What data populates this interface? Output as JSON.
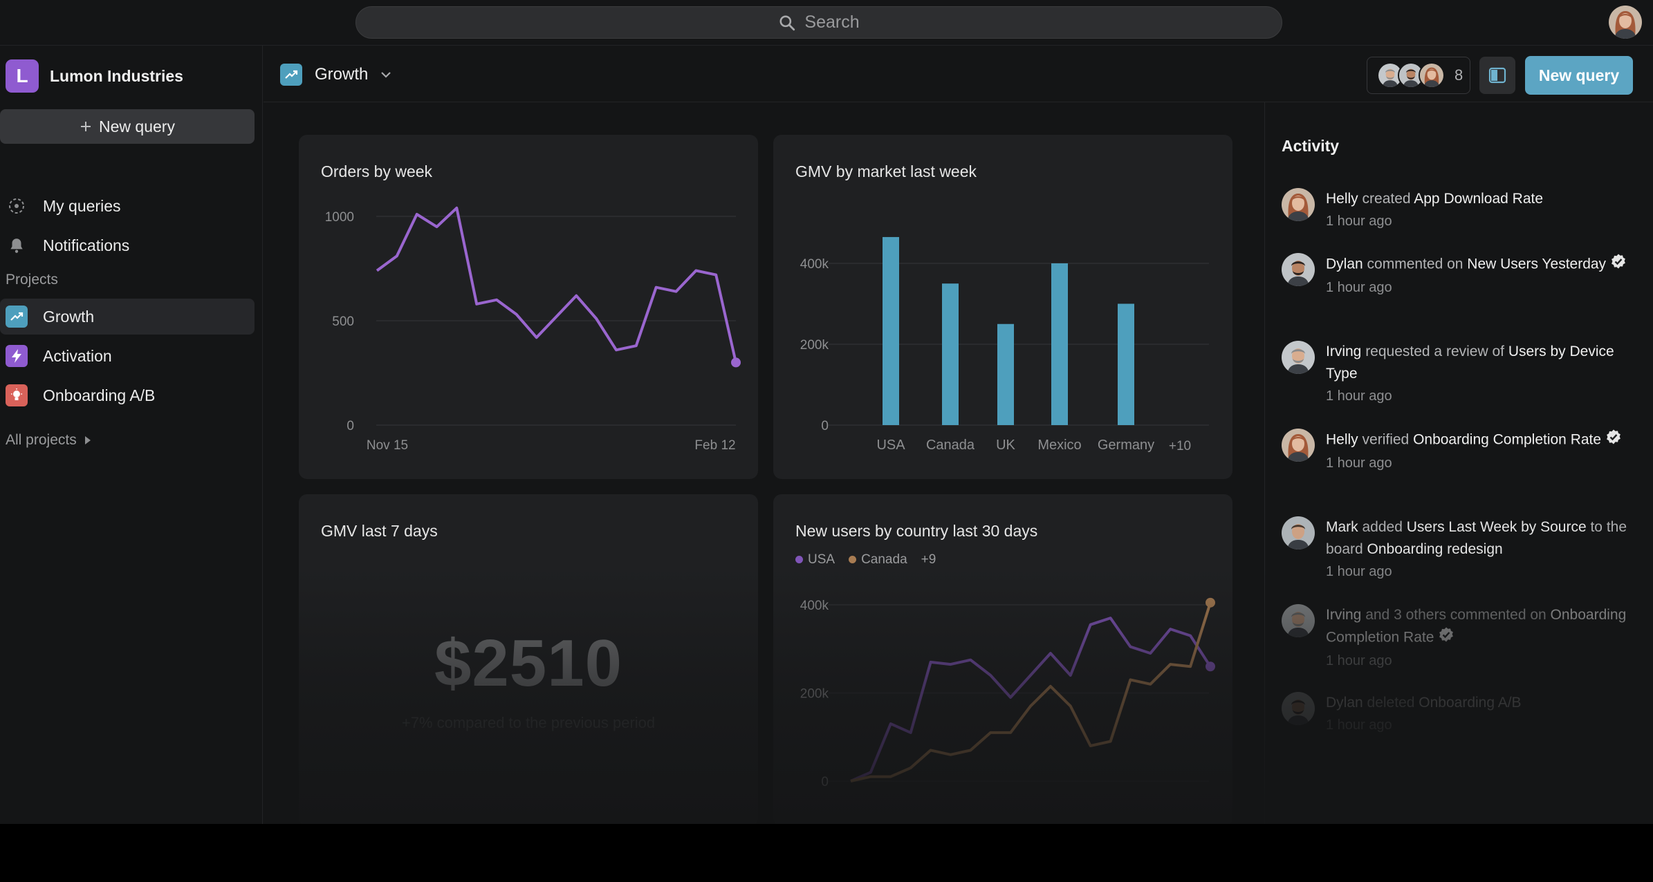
{
  "search": {
    "placeholder": "Search"
  },
  "workspace": {
    "initial": "L",
    "name": "Lumon Industries"
  },
  "sidebar": {
    "new_query": "New query",
    "nav": [
      {
        "label": "My queries",
        "icon": "queries-icon"
      },
      {
        "label": "Notifications",
        "icon": "bell-icon"
      }
    ],
    "projects_heading": "Projects",
    "projects": [
      {
        "label": "Growth",
        "icon": "trend-up-icon",
        "color": "#4e9fbd",
        "active": true
      },
      {
        "label": "Activation",
        "icon": "lightning-icon",
        "color": "#8f5bd0"
      },
      {
        "label": "Onboarding A/B",
        "icon": "lightbulb-icon",
        "color": "#d9625a"
      }
    ],
    "all_projects": "All projects"
  },
  "header": {
    "project": "Growth",
    "collaborator_count": "8",
    "new_query": "New query"
  },
  "cards": {
    "orders": {
      "title": "Orders by week"
    },
    "gmv_market": {
      "title": "GMV by market last week"
    },
    "gmv7": {
      "title": "GMV last 7 days",
      "value": "$2510",
      "subtitle": "+7% compared to the previous period"
    },
    "new_users": {
      "title": "New users by country last 30 days",
      "legend": [
        "USA",
        "Canada"
      ],
      "legend_more": "+9"
    }
  },
  "chart_data": [
    {
      "type": "line",
      "title": "Orders by week",
      "x_ticks": [
        "Nov 15",
        "Feb 12"
      ],
      "y_ticks": [
        "0",
        "500",
        "1000"
      ],
      "ylim": [
        0,
        1000
      ],
      "series": [
        {
          "color": "#9a66cf",
          "values": [
            740,
            810,
            1010,
            950,
            1040,
            580,
            600,
            530,
            420,
            520,
            620,
            510,
            360,
            380,
            660,
            640,
            740,
            720,
            300
          ]
        }
      ]
    },
    {
      "type": "bar",
      "title": "GMV by market last week",
      "categories": [
        "USA",
        "Canada",
        "UK",
        "Mexico",
        "Germany"
      ],
      "extra_label": "+10",
      "y_ticks": [
        "0",
        "200k",
        "400k"
      ],
      "ylim": [
        0,
        400000
      ],
      "color": "#4e9fbd",
      "values": [
        465000,
        350000,
        250000,
        400000,
        300000
      ]
    },
    {
      "type": "line",
      "title": "New users by country last 30 days",
      "y_ticks": [
        "0",
        "200k",
        "400k"
      ],
      "ylim": [
        0,
        400000
      ],
      "series": [
        {
          "name": "USA",
          "color": "#8055b8",
          "values": [
            0,
            20000,
            130000,
            110000,
            270000,
            265000,
            275000,
            240000,
            190000,
            240000,
            290000,
            240000,
            355000,
            370000,
            305000,
            290000,
            345000,
            330000,
            260000
          ]
        },
        {
          "name": "Canada",
          "color": "#a87c52",
          "values": [
            0,
            10000,
            10000,
            30000,
            70000,
            60000,
            70000,
            110000,
            110000,
            170000,
            215000,
            170000,
            80000,
            90000,
            230000,
            220000,
            265000,
            260000,
            405000
          ]
        }
      ]
    }
  ],
  "activity": {
    "title": "Activity",
    "items": [
      {
        "user": "Helly",
        "parts": [
          [
            "b",
            "Helly"
          ],
          [
            "t",
            " created "
          ],
          [
            "b",
            "App Download Rate"
          ]
        ],
        "verified": false,
        "time": "1 hour ago",
        "avatar": "helly"
      },
      {
        "user": "Dylan",
        "parts": [
          [
            "b",
            "Dylan"
          ],
          [
            "t",
            " commented on "
          ],
          [
            "b",
            "New Users Yesterday"
          ]
        ],
        "verified": true,
        "time": "1 hour ago",
        "avatar": "dylan"
      },
      {
        "user": "Irving",
        "parts": [
          [
            "b",
            "Irving"
          ],
          [
            "t",
            " requested a review of "
          ],
          [
            "b",
            "Users by Device Type"
          ]
        ],
        "verified": false,
        "time": "1 hour ago",
        "avatar": "irving"
      },
      {
        "user": "Helly",
        "parts": [
          [
            "b",
            "Helly"
          ],
          [
            "t",
            " verified "
          ],
          [
            "b",
            "Onboarding Completion Rate"
          ]
        ],
        "verified": true,
        "time": "1 hour ago",
        "avatar": "helly"
      },
      {
        "user": "Mark",
        "parts": [
          [
            "b",
            "Mark"
          ],
          [
            "t",
            " added "
          ],
          [
            "b",
            "Users Last Week by Source"
          ],
          [
            "t",
            " to the board "
          ],
          [
            "b",
            "Onboarding redesign"
          ]
        ],
        "verified": false,
        "time": "1 hour ago",
        "avatar": "mark"
      },
      {
        "user": "Irving",
        "parts": [
          [
            "b",
            "Irving"
          ],
          [
            "t",
            " and 3 others commented on "
          ],
          [
            "b",
            "Onboarding Completion Rate"
          ]
        ],
        "verified": true,
        "time": "1 hour ago",
        "avatar": "irving"
      },
      {
        "user": "Dylan",
        "parts": [
          [
            "b",
            "Dylan"
          ],
          [
            "t",
            " deleted "
          ],
          [
            "b",
            "Onboarding A/B"
          ]
        ],
        "verified": false,
        "time": "1 hour ago",
        "avatar": "dylan"
      }
    ]
  }
}
